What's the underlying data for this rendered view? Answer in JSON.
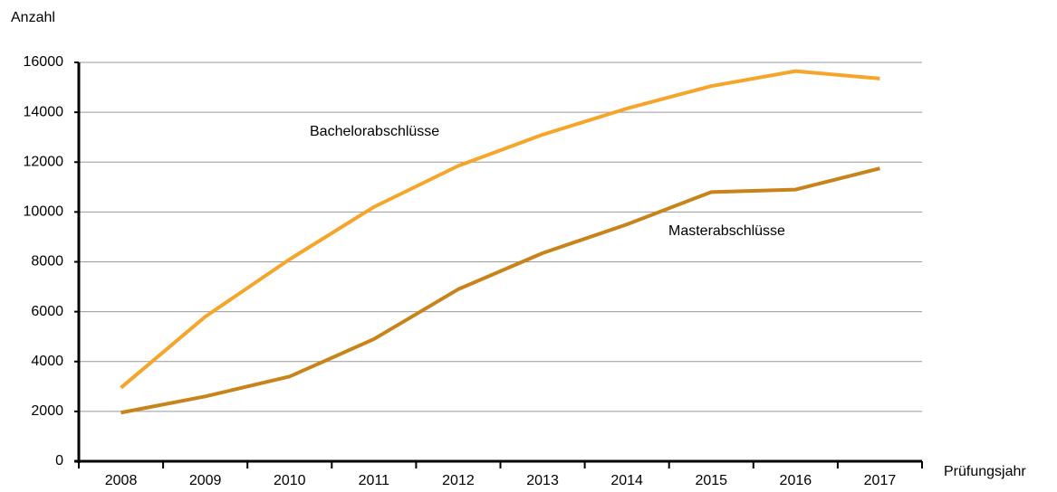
{
  "chart_data": {
    "type": "line",
    "y_label": "Anzahl",
    "x_label": "Prüfungsjahr",
    "categories": [
      "2008",
      "2009",
      "2010",
      "2011",
      "2012",
      "2013",
      "2014",
      "2015",
      "2016",
      "2017"
    ],
    "series": [
      {
        "name": "Bachelorabschlüsse",
        "color": "#f6a52b",
        "values": [
          2950,
          5800,
          8100,
          10200,
          11850,
          13100,
          14150,
          15050,
          15650,
          15350
        ]
      },
      {
        "name": "Masterabschlüsse",
        "color": "#c8831a",
        "values": [
          1950,
          2600,
          3400,
          4900,
          6900,
          8350,
          9500,
          10800,
          10900,
          11750
        ]
      }
    ],
    "ylim": [
      0,
      16000
    ],
    "yticks": [
      0,
      2000,
      4000,
      6000,
      8000,
      10000,
      12000,
      14000,
      16000
    ],
    "grid": true
  }
}
